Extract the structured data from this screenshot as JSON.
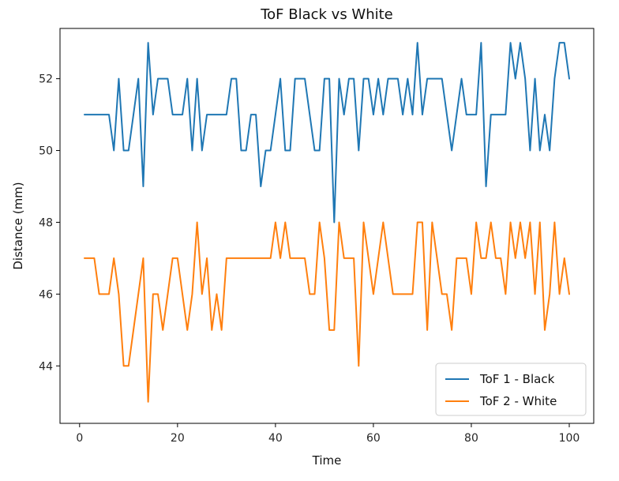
{
  "chart_data": {
    "type": "line",
    "title": "ToF Black vs White",
    "xlabel": "Time",
    "ylabel": "Distance (mm)",
    "xlim": [
      -4,
      105
    ],
    "ylim": [
      42.4,
      53.4
    ],
    "xticks": [
      0,
      20,
      40,
      60,
      80,
      100
    ],
    "yticks": [
      44,
      46,
      48,
      50,
      52
    ],
    "grid": false,
    "legend_position": "lower-right",
    "x": [
      1,
      2,
      3,
      4,
      5,
      6,
      7,
      8,
      9,
      10,
      11,
      12,
      13,
      14,
      15,
      16,
      17,
      18,
      19,
      20,
      21,
      22,
      23,
      24,
      25,
      26,
      27,
      28,
      29,
      30,
      31,
      32,
      33,
      34,
      35,
      36,
      37,
      38,
      39,
      40,
      41,
      42,
      43,
      44,
      45,
      46,
      47,
      48,
      49,
      50,
      51,
      52,
      53,
      54,
      55,
      56,
      57,
      58,
      59,
      60,
      61,
      62,
      63,
      64,
      65,
      66,
      67,
      68,
      69,
      70,
      71,
      72,
      73,
      74,
      75,
      76,
      77,
      78,
      79,
      80,
      81,
      82,
      83,
      84,
      85,
      86,
      87,
      88,
      89,
      90,
      91,
      92,
      93,
      94,
      95,
      96,
      97,
      98,
      99,
      100
    ],
    "series": [
      {
        "name": "ToF 1 - Black",
        "color": "#1f77b4",
        "values": [
          51,
          51,
          51,
          51,
          51,
          51,
          50,
          52,
          50,
          50,
          51,
          52,
          49,
          53,
          51,
          52,
          52,
          52,
          51,
          51,
          51,
          52,
          50,
          52,
          50,
          51,
          51,
          51,
          51,
          51,
          52,
          52,
          50,
          50,
          51,
          51,
          49,
          50,
          50,
          51,
          52,
          50,
          50,
          52,
          52,
          52,
          51,
          50,
          50,
          52,
          52,
          48,
          52,
          51,
          52,
          52,
          50,
          52,
          52,
          51,
          52,
          51,
          52,
          52,
          52,
          51,
          52,
          51,
          53,
          51,
          52,
          52,
          52,
          52,
          51,
          50,
          51,
          52,
          51,
          51,
          51,
          53,
          49,
          51,
          51,
          51,
          51,
          53,
          52,
          53,
          52,
          50,
          52,
          50,
          51,
          50,
          52,
          53,
          53,
          52
        ]
      },
      {
        "name": "ToF 2 - White",
        "color": "#ff7f0e",
        "values": [
          47,
          47,
          47,
          46,
          46,
          46,
          47,
          46,
          44,
          44,
          45,
          46,
          47,
          43,
          46,
          46,
          45,
          46,
          47,
          47,
          46,
          45,
          46,
          48,
          46,
          47,
          45,
          46,
          45,
          47,
          47,
          47,
          47,
          47,
          47,
          47,
          47,
          47,
          47,
          48,
          47,
          48,
          47,
          47,
          47,
          47,
          46,
          46,
          48,
          47,
          45,
          45,
          48,
          47,
          47,
          47,
          44,
          48,
          47,
          46,
          47,
          48,
          47,
          46,
          46,
          46,
          46,
          46,
          48,
          48,
          45,
          48,
          47,
          46,
          46,
          45,
          47,
          47,
          47,
          46,
          48,
          47,
          47,
          48,
          47,
          47,
          46,
          48,
          47,
          48,
          47,
          48,
          46,
          48,
          45,
          46,
          48,
          46,
          47,
          46
        ]
      }
    ]
  }
}
